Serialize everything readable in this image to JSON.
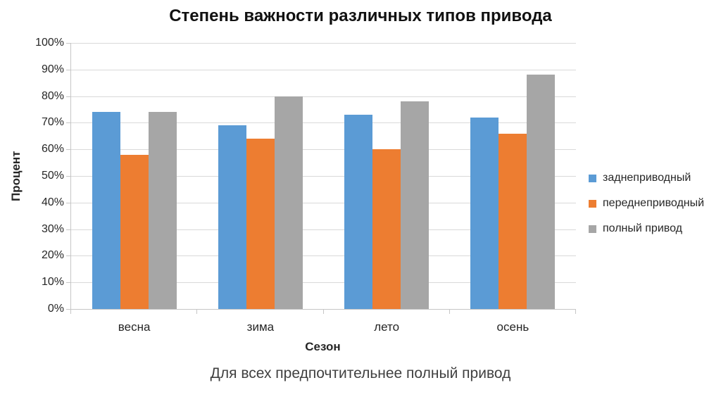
{
  "title": "Степень важности различных типов привода",
  "caption": "Для всех предпочтительнее полный привод",
  "chart_data": {
    "type": "bar",
    "title": "Степень важности различных типов привода",
    "caption": "Для всех предпочтительнее полный привод",
    "xlabel": "Сезон",
    "ylabel": "Процент",
    "categories": [
      "весна",
      "зима",
      "лето",
      "осень"
    ],
    "series": [
      {
        "name": "заднеприводный",
        "color": "#5B9BD5",
        "values": [
          74,
          69,
          73,
          72
        ]
      },
      {
        "name": "переднеприводный",
        "color": "#ED7D31",
        "values": [
          58,
          64,
          60,
          66
        ]
      },
      {
        "name": "полный привод",
        "color": "#A6A6A6",
        "values": [
          74,
          80,
          78,
          88
        ]
      }
    ],
    "ylim": [
      0,
      100
    ],
    "ytick_step": 10,
    "ytick_suffix": "%",
    "grid": true,
    "legend_position": "right",
    "colors": {
      "gridline": "#D9D9D9",
      "axis": "#C6C6C6",
      "tick_text": "#262626",
      "caption_text": "#404040"
    }
  }
}
